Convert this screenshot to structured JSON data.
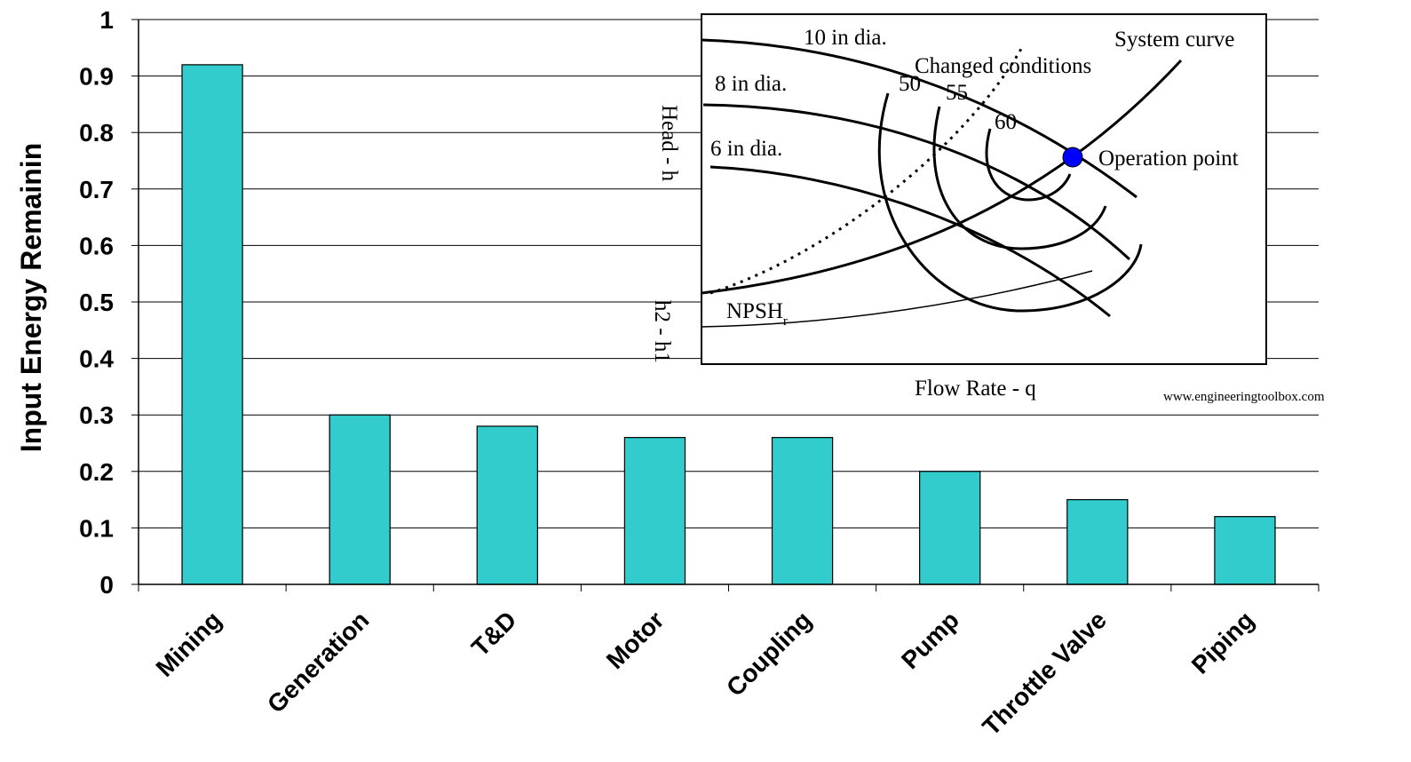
{
  "chart_data": {
    "type": "bar",
    "title": "",
    "xlabel": "",
    "ylabel": "Input Energy Remainin",
    "ylim": [
      0,
      1
    ],
    "yticks": [
      "0",
      "0.1",
      "0.2",
      "0.3",
      "0.4",
      "0.5",
      "0.6",
      "0.7",
      "0.8",
      "0.9",
      "1"
    ],
    "grid": true,
    "categories": [
      "Mining",
      "Generation",
      "T&D",
      "Motor",
      "Coupling",
      "Pump",
      "Throttle Valve",
      "Piping"
    ],
    "values": [
      0.92,
      0.3,
      0.28,
      0.26,
      0.26,
      0.2,
      0.15,
      0.12
    ],
    "bar_color": "#33CCCC"
  },
  "inset": {
    "labels": {
      "ten_in": "10 in dia.",
      "eight_in": "8 in dia.",
      "six_in": "6 in dia.",
      "system_curve": "System curve",
      "changed_conditions": "Changed conditions",
      "eff50": "50",
      "eff55": "55",
      "eff60": "60",
      "operation_point": "Operation point",
      "npsh": "NPSH",
      "npsh_sub": "r",
      "head_axis": "Head - h",
      "h2h1": "h2 - h1",
      "flow_axis": "Flow Rate - q",
      "source": "www.engineeringtoolbox.com"
    },
    "operation_point_color": "#0000FF"
  }
}
